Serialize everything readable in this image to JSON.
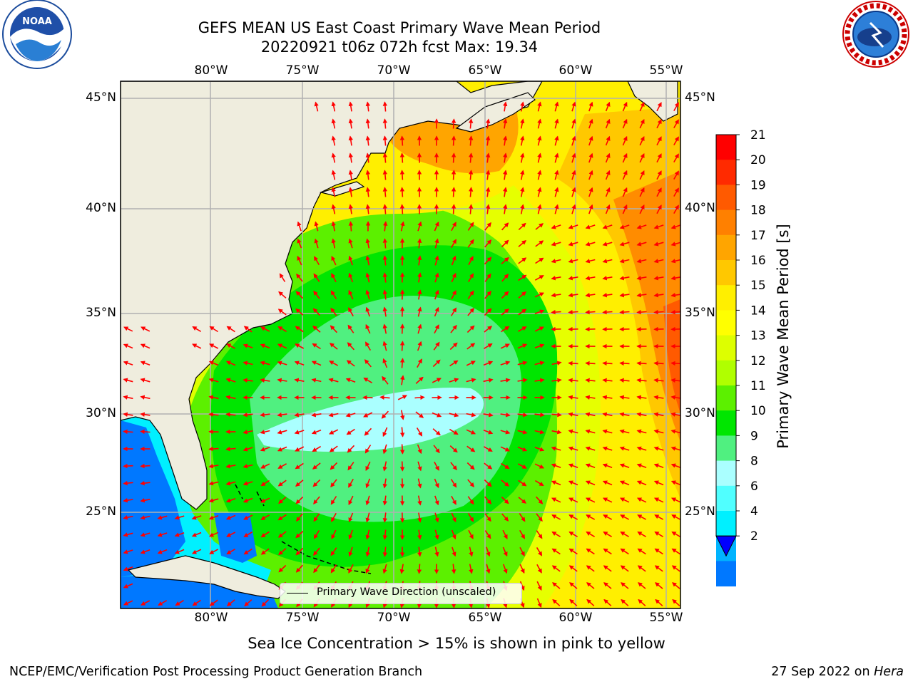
{
  "title_line1": "GEFS MEAN US East Coast Primary Wave Mean Period",
  "title_line2": "20220921 t06z 072h fcst   Max: 19.34",
  "left_logo": {
    "icon": "noaa-logo",
    "text": "NOAA",
    "ring_text": "NATIONAL OCEANIC AND ATMOSPHERIC ADMINISTRATION · U.S. DEPARTMENT OF COMMERCE"
  },
  "right_logo": {
    "icon": "nws-logo",
    "ring_text": "NATIONAL WEATHER SERVICE"
  },
  "lon_labels": [
    "80°W",
    "75°W",
    "70°W",
    "65°W",
    "60°W",
    "55°W"
  ],
  "lat_labels": [
    "45°N",
    "40°N",
    "35°N",
    "30°N",
    "25°N"
  ],
  "colorbar": {
    "label": "Primary Wave Mean Period [s]",
    "ticks": [
      "21",
      "20",
      "19",
      "18",
      "17",
      "16",
      "15",
      "14",
      "13",
      "12",
      "11",
      "10",
      "9",
      "8",
      "6",
      "4",
      "2"
    ],
    "colors": [
      "#ff0000",
      "#ff2a00",
      "#ff5a00",
      "#ff8000",
      "#ffa500",
      "#ffc800",
      "#ffef00",
      "#ffff00",
      "#ddff00",
      "#b0ff00",
      "#5cf000",
      "#00e600",
      "#50f080",
      "#aaffff",
      "#50ffff",
      "#00f0ff",
      "#00b4ff",
      "#0078ff",
      "#0000ff"
    ]
  },
  "legend": {
    "label": "Primary Wave Direction (unscaled)"
  },
  "note": "Sea Ice Concentration > 15% is shown in pink to yellow",
  "footer_left": "NCEP/EMC/Verification Post Processing Product Generation Branch",
  "footer_date": "27 Sep 2022 on ",
  "footer_machine": "Hera",
  "colors": {
    "land": "#efedde",
    "grid": "#b0b0b0",
    "arrow": "#ff0000"
  }
}
